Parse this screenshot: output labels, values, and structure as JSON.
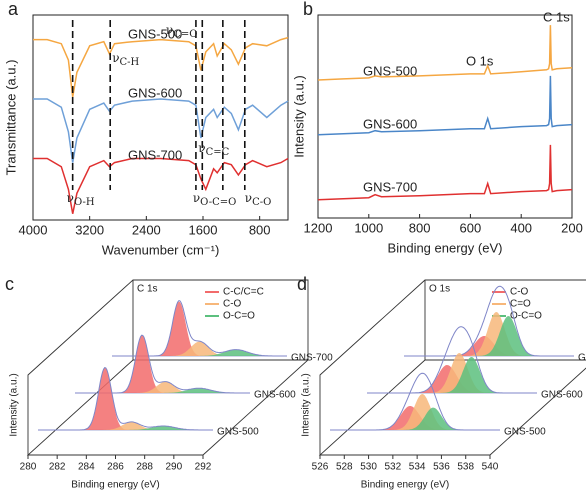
{
  "chart_data": [
    {
      "type": "line",
      "panel_label": "a",
      "xlabel": "Wavenumber (cm⁻¹)",
      "ylabel": "Transmittance (a.u.)",
      "xlim": [
        4000,
        400
      ],
      "xticks": [
        4000,
        3200,
        2400,
        1600,
        800
      ],
      "ylim": [
        0,
        10
      ],
      "x": [
        4000,
        3800,
        3600,
        3500,
        3440,
        3380,
        3200,
        3000,
        2920,
        2850,
        2600,
        2200,
        1800,
        1700,
        1630,
        1560,
        1450,
        1400,
        1300,
        1200,
        1100,
        1000,
        900,
        700,
        500,
        400
      ],
      "series": [
        {
          "name": "GNS-500",
          "color": "#f5a742",
          "values": [
            8.8,
            8.8,
            8.6,
            7.8,
            6.0,
            7.2,
            8.5,
            8.7,
            8.1,
            8.6,
            8.7,
            8.8,
            8.7,
            8.5,
            7.3,
            8.2,
            8.6,
            8.0,
            8.6,
            8.3,
            7.6,
            8.4,
            8.6,
            8.5,
            8.8,
            8.9
          ]
        },
        {
          "name": "GNS-600",
          "color": "#6fa0d8",
          "values": [
            5.9,
            5.9,
            5.5,
            4.3,
            2.8,
            4.0,
            5.4,
            5.7,
            5.3,
            5.6,
            5.8,
            5.9,
            5.8,
            5.6,
            4.0,
            5.0,
            5.4,
            5.0,
            5.5,
            5.2,
            4.4,
            5.4,
            5.6,
            5.0,
            5.6,
            5.8
          ]
        },
        {
          "name": "GNS-700",
          "color": "#e03030",
          "values": [
            3.0,
            3.0,
            2.6,
            1.5,
            0.3,
            1.3,
            2.6,
            2.9,
            2.6,
            2.8,
            3.0,
            3.0,
            2.9,
            2.7,
            2.0,
            1.5,
            2.5,
            2.3,
            2.8,
            2.7,
            2.2,
            2.7,
            2.9,
            2.6,
            2.8,
            3.0
          ]
        }
      ],
      "annotations": [
        {
          "symbol": "ν",
          "subscript": "O-H",
          "x": 3440
        },
        {
          "symbol": "ν",
          "subscript": "C-H",
          "x": 2910
        },
        {
          "symbol": "ν",
          "subscript": "C=O",
          "x": 1700
        },
        {
          "symbol": "ν",
          "subscript": "C=C",
          "x": 1610
        },
        {
          "symbol": "ν",
          "subscript": "O-C=O",
          "x": 1320
        },
        {
          "symbol": "ν",
          "subscript": "C-O",
          "x": 1010
        }
      ]
    },
    {
      "type": "line",
      "panel_label": "b",
      "xlabel": "Binding energy (eV)",
      "ylabel": "Intensity (a.u.)",
      "xlim": [
        1200,
        200
      ],
      "xticks": [
        1200,
        1000,
        800,
        600,
        400,
        200
      ],
      "ylim": [
        0,
        10
      ],
      "x": [
        1200,
        1100,
        1000,
        975,
        950,
        800,
        600,
        545,
        532,
        520,
        400,
        300,
        292,
        288,
        285,
        282,
        278,
        260,
        200
      ],
      "series": [
        {
          "name": "GNS-500",
          "color": "#f5a742",
          "values": [
            6.8,
            6.85,
            6.9,
            7.0,
            6.95,
            7.0,
            7.1,
            7.1,
            7.5,
            7.1,
            7.2,
            7.3,
            7.35,
            7.6,
            9.5,
            7.6,
            7.3,
            7.35,
            7.4
          ]
        },
        {
          "name": "GNS-600",
          "color": "#4a86c8",
          "values": [
            4.1,
            4.15,
            4.2,
            4.3,
            4.25,
            4.3,
            4.4,
            4.4,
            4.9,
            4.4,
            4.5,
            4.55,
            4.6,
            4.9,
            7.0,
            4.9,
            4.5,
            4.55,
            4.6
          ]
        },
        {
          "name": "GNS-700",
          "color": "#e03030",
          "values": [
            0.9,
            0.95,
            1.0,
            1.15,
            1.05,
            1.1,
            1.2,
            1.2,
            1.7,
            1.2,
            1.3,
            1.35,
            1.4,
            1.7,
            3.6,
            1.7,
            1.3,
            1.35,
            1.4
          ]
        }
      ],
      "annotations": [
        {
          "text": "O 1s",
          "x": 532
        },
        {
          "text": "C 1s",
          "x": 285
        }
      ]
    },
    {
      "type": "waterfall",
      "panel_label": "c",
      "title": "C 1s",
      "xlabel": "Binding energy (eV)",
      "ylabel": "Intensity (a.u.)",
      "xlim": [
        280,
        292
      ],
      "xticks": [
        280,
        282,
        284,
        286,
        288,
        290,
        292
      ],
      "ylim": [
        0,
        100
      ],
      "components": [
        {
          "name": "C-C/C=C",
          "color": "#f26b6b"
        },
        {
          "name": "C-O",
          "color": "#f7b77a"
        },
        {
          "name": "O-C=O",
          "color": "#5cc07e"
        }
      ],
      "samples": [
        {
          "name": "GNS-500",
          "peaks": [
            {
              "center": 284.6,
              "height": 78,
              "width": 0.45
            },
            {
              "center": 286.4,
              "height": 10,
              "width": 0.6
            },
            {
              "center": 288.6,
              "height": 5,
              "width": 0.8
            }
          ]
        },
        {
          "name": "GNS-600",
          "peaks": [
            {
              "center": 284.6,
              "height": 72,
              "width": 0.45
            },
            {
              "center": 286.2,
              "height": 14,
              "width": 0.6
            },
            {
              "center": 288.5,
              "height": 6,
              "width": 0.8
            }
          ]
        },
        {
          "name": "GNS-700",
          "peaks": [
            {
              "center": 284.6,
              "height": 68,
              "width": 0.45
            },
            {
              "center": 286.0,
              "height": 18,
              "width": 0.6
            },
            {
              "center": 288.5,
              "height": 8,
              "width": 0.8
            }
          ]
        }
      ]
    },
    {
      "type": "waterfall",
      "panel_label": "d",
      "title": "O 1s",
      "xlabel": "Binding energy (eV)",
      "ylabel": "Intensity (a.u.)",
      "xlim": [
        526,
        540
      ],
      "xticks": [
        526,
        528,
        530,
        532,
        534,
        536,
        538,
        540
      ],
      "ylim": [
        0,
        100
      ],
      "components": [
        {
          "name": "C-O",
          "color": "#f26b6b"
        },
        {
          "name": "C=O",
          "color": "#f7b77a"
        },
        {
          "name": "O-C=O",
          "color": "#5cc07e"
        }
      ],
      "samples": [
        {
          "name": "GNS-500",
          "peaks": [
            {
              "center": 532.6,
              "height": 30,
              "width": 0.8
            },
            {
              "center": 533.6,
              "height": 45,
              "width": 0.7
            },
            {
              "center": 534.5,
              "height": 28,
              "width": 0.7
            }
          ]
        },
        {
          "name": "GNS-600",
          "peaks": [
            {
              "center": 532.6,
              "height": 35,
              "width": 0.8
            },
            {
              "center": 533.6,
              "height": 50,
              "width": 0.7
            },
            {
              "center": 534.6,
              "height": 45,
              "width": 0.7
            }
          ]
        },
        {
          "name": "GNS-700",
          "peaks": [
            {
              "center": 532.6,
              "height": 25,
              "width": 0.8
            },
            {
              "center": 533.6,
              "height": 55,
              "width": 0.7
            },
            {
              "center": 534.6,
              "height": 50,
              "width": 0.7
            }
          ]
        }
      ]
    }
  ]
}
